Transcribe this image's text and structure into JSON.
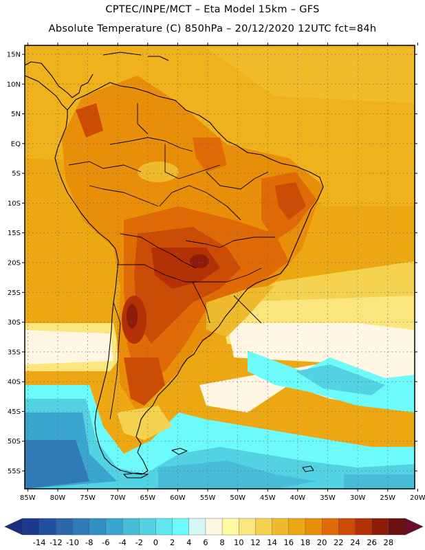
{
  "header": {
    "line1": "CPTEC/INPE/MCT –  Eta Model 15km – GFS",
    "line2": "Absolute Temperature (C) 850hPa – 20/12/2020 12UTC fct=84h"
  },
  "map": {
    "lat_labels": [
      "15N",
      "10N",
      "5N",
      "EQ",
      "5S",
      "10S",
      "15S",
      "20S",
      "25S",
      "30S",
      "35S",
      "40S",
      "45S",
      "50S",
      "55S"
    ],
    "lon_labels": [
      "85W",
      "80W",
      "75W",
      "70W",
      "65W",
      "60W",
      "55W",
      "50W",
      "45W",
      "40W",
      "35W",
      "30W",
      "25W",
      "20W"
    ],
    "lat_values": [
      15,
      10,
      5,
      0,
      -5,
      -10,
      -15,
      -20,
      -25,
      -30,
      -35,
      -40,
      -45,
      -50,
      -55
    ],
    "lon_values": [
      -85,
      -80,
      -75,
      -70,
      -65,
      -60,
      -55,
      -50,
      -45,
      -40,
      -35,
      -30,
      -25,
      -20
    ],
    "lat_range": [
      -58,
      16.5
    ],
    "lon_range": [
      -85.5,
      -20.5
    ]
  },
  "colorbar": {
    "labels": [
      "-14",
      "-12",
      "-10",
      "-8",
      "-6",
      "-4",
      "-2",
      "0",
      "2",
      "4",
      "6",
      "8",
      "10",
      "12",
      "14",
      "16",
      "18",
      "20",
      "22",
      "24",
      "26",
      "28"
    ],
    "colors": [
      "#1b3a8c",
      "#1f4f9e",
      "#2a67ad",
      "#2f7bb8",
      "#3390c4",
      "#3aa6cf",
      "#47bdd9",
      "#52d2e3",
      "#5fe6ee",
      "#6dfafa",
      "#d4f7f7",
      "#fff6e3",
      "#fffaa2",
      "#fbe57d",
      "#f4d24f",
      "#efbb2c",
      "#eca712",
      "#e98e08",
      "#e06b06",
      "#cc4b05",
      "#b33105",
      "#8c1c08",
      "#6b1010"
    ],
    "under_color": "#1a2f80",
    "over_color": "#6a0c2a"
  }
}
